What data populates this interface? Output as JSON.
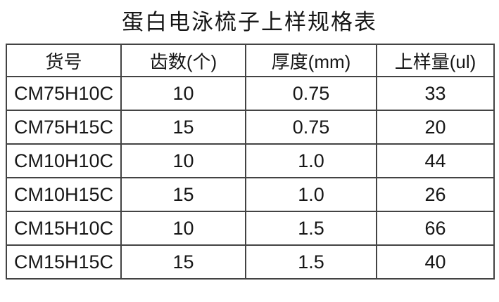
{
  "title": "蛋白电泳梳子上样规格表",
  "chart_data": {
    "type": "table",
    "title": "蛋白电泳梳子上样规格表",
    "columns": [
      "货号",
      "齿数(个)",
      "厚度(mm)",
      "上样量(ul)"
    ],
    "rows": [
      [
        "CM75H10C",
        "10",
        "0.75",
        "33"
      ],
      [
        "CM75H15C",
        "15",
        "0.75",
        "20"
      ],
      [
        "CM10H10C",
        "10",
        "1.0",
        "44"
      ],
      [
        "CM10H15C",
        "15",
        "1.0",
        "26"
      ],
      [
        "CM15H10C",
        "10",
        "1.5",
        "66"
      ],
      [
        "CM15H15C",
        "15",
        "1.5",
        "40"
      ]
    ],
    "layout": {
      "grid": "full-borders",
      "cell_alignment": "center"
    }
  },
  "colors": {
    "background": "#ffffff",
    "border": "#434343",
    "text": "#161616"
  }
}
